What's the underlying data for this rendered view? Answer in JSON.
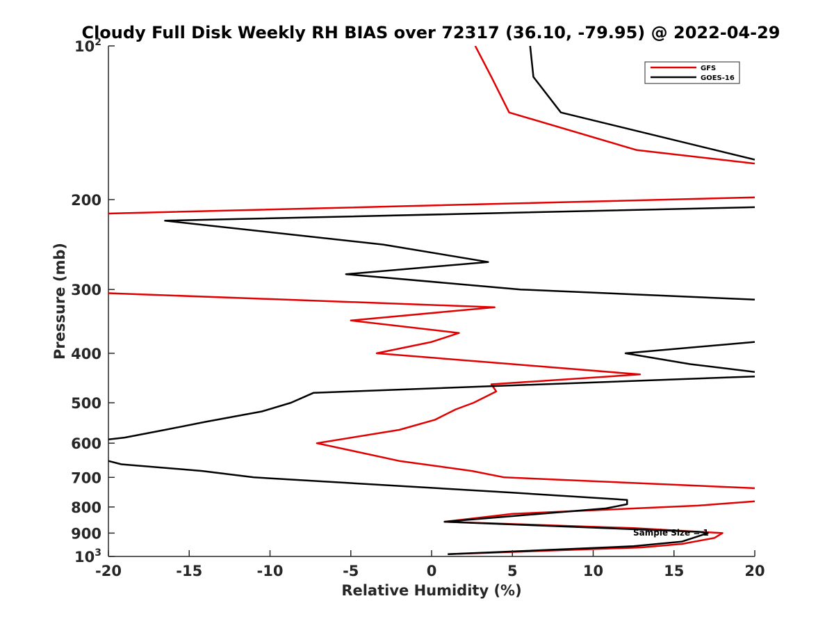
{
  "chart_data": {
    "type": "line",
    "title": "Cloudy Full Disk Weekly RH BIAS over 72317 (36.10, -79.95) @ 2022-04-29",
    "xlabel": "Relative Humidity (%)",
    "ylabel": "Pressure (mb)",
    "xlim": [
      -20,
      20
    ],
    "ylim": [
      100,
      1000
    ],
    "y_scale": "log",
    "y_reversed": true,
    "grid": false,
    "legend_position": "top-right",
    "xticks": [
      "-20",
      "-15",
      "-10",
      "-5",
      "0",
      "5",
      "10",
      "15",
      "20"
    ],
    "yticks": [
      {
        "value": 100,
        "base": "10",
        "exp": "2"
      },
      {
        "value": 200,
        "label": "200"
      },
      {
        "value": 300,
        "label": "300"
      },
      {
        "value": 400,
        "label": "400"
      },
      {
        "value": 500,
        "label": "500"
      },
      {
        "value": 600,
        "label": "600"
      },
      {
        "value": 700,
        "label": "700"
      },
      {
        "value": 800,
        "label": "800"
      },
      {
        "value": 900,
        "label": "900"
      },
      {
        "value": 1000,
        "base": "10",
        "exp": "3"
      }
    ],
    "annotation": "Sample Size = 1",
    "series": [
      {
        "name": "GFS",
        "color": "#e00000",
        "points": [
          [
            2.7,
            100
          ],
          [
            3.7,
            115
          ],
          [
            4.8,
            135
          ],
          [
            12.7,
            160
          ],
          [
            20,
            170
          ],
          [
            null,
            null
          ],
          [
            20,
            198
          ],
          [
            -20,
            213
          ],
          [
            null,
            null
          ],
          [
            -20,
            305
          ],
          [
            3.9,
            325
          ],
          [
            -5,
            345
          ],
          [
            1.7,
            365
          ],
          [
            0,
            380
          ],
          [
            -3.4,
            400
          ],
          [
            5,
            420
          ],
          [
            12.9,
            440
          ],
          [
            3.7,
            460
          ],
          [
            4,
            475
          ],
          [
            2.6,
            500
          ],
          [
            1.5,
            515
          ],
          [
            0.2,
            540
          ],
          [
            -2,
            565
          ],
          [
            -7.1,
            600
          ],
          [
            -5,
            620
          ],
          [
            -2,
            650
          ],
          [
            2.5,
            680
          ],
          [
            4.5,
            700
          ],
          [
            20,
            735
          ],
          [
            null,
            null
          ],
          [
            20,
            780
          ],
          [
            16.5,
            795
          ],
          [
            5,
            825
          ],
          [
            0.8,
            855
          ],
          [
            12.5,
            880
          ],
          [
            18,
            900
          ],
          [
            17.5,
            920
          ],
          [
            15.5,
            945
          ],
          [
            13,
            960
          ],
          [
            1,
            990
          ]
        ]
      },
      {
        "name": "GOES-16",
        "color": "#000000",
        "points": [
          [
            6.1,
            100
          ],
          [
            6.3,
            115
          ],
          [
            8,
            135
          ],
          [
            20,
            167
          ],
          [
            null,
            null
          ],
          [
            20,
            207
          ],
          [
            -16.5,
            220
          ],
          [
            -3,
            245
          ],
          [
            3.5,
            265
          ],
          [
            -5.3,
            280
          ],
          [
            5.5,
            300
          ],
          [
            20,
            314
          ],
          [
            null,
            null
          ],
          [
            20,
            380
          ],
          [
            12,
            400
          ],
          [
            16,
            420
          ],
          [
            20,
            435
          ],
          [
            null,
            null
          ],
          [
            20,
            444
          ],
          [
            -7.3,
            478
          ],
          [
            -8.7,
            500
          ],
          [
            -10.5,
            520
          ],
          [
            -14,
            545
          ],
          [
            -16.5,
            565
          ],
          [
            -19,
            585
          ],
          [
            -20,
            590
          ],
          [
            null,
            null
          ],
          [
            -20,
            650
          ],
          [
            -19.2,
            660
          ],
          [
            -14.2,
            680
          ],
          [
            -11,
            700
          ],
          [
            5,
            750
          ],
          [
            12.1,
            775
          ],
          [
            12.1,
            790
          ],
          [
            10.8,
            805
          ],
          [
            0.8,
            855
          ],
          [
            16.5,
            895
          ],
          [
            17.1,
            900
          ],
          [
            15.5,
            935
          ],
          [
            12.5,
            955
          ],
          [
            1,
            990
          ]
        ]
      }
    ]
  }
}
